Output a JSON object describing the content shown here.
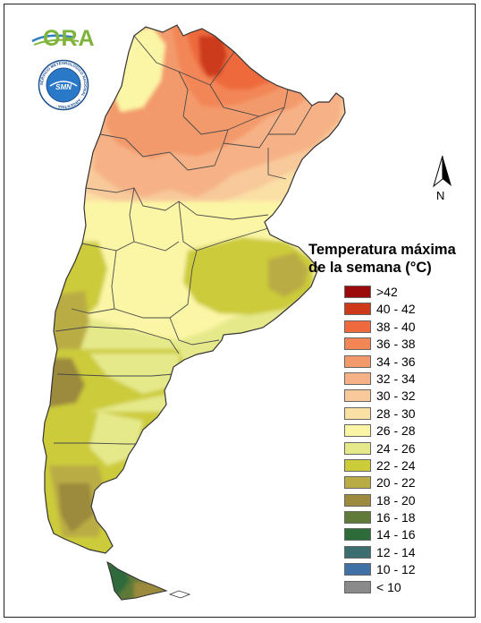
{
  "logos": {
    "ora": "ORA",
    "smn_ring_text": "SERVICIO METEOROLÓGICO NACIONAL · ARGENTINA ·",
    "smn_center": "SMN"
  },
  "north": {
    "label": "N",
    "icon": "north-arrow-icon"
  },
  "legend": {
    "title_line1": "Temperatura máxima",
    "title_line2": "de la semana (°C)",
    "items": [
      {
        "label": ">42",
        "color": "#9b0b0b"
      },
      {
        "label": "40 - 42",
        "color": "#cc3a1a"
      },
      {
        "label": "38 - 40",
        "color": "#ee6a3e"
      },
      {
        "label": "36 - 38",
        "color": "#f28656"
      },
      {
        "label": "34 - 36",
        "color": "#f39a6c"
      },
      {
        "label": "32 - 34",
        "color": "#f6b286"
      },
      {
        "label": "30 - 32",
        "color": "#f8c99a"
      },
      {
        "label": "28 - 30",
        "color": "#fbe0a6"
      },
      {
        "label": "26 - 28",
        "color": "#fbf5a6"
      },
      {
        "label": "24 - 26",
        "color": "#e5e98a"
      },
      {
        "label": "22 - 24",
        "color": "#cccb3a"
      },
      {
        "label": "20 - 22",
        "color": "#b9ac44"
      },
      {
        "label": "18 - 20",
        "color": "#9c8a3e"
      },
      {
        "label": "16 - 18",
        "color": "#5f7a39"
      },
      {
        "label": "14 - 16",
        "color": "#2e6b3a"
      },
      {
        "label": "12 - 14",
        "color": "#3c6e70"
      },
      {
        "label": "10 - 12",
        "color": "#3f70a6"
      },
      {
        "label": "< 10",
        "color": "#8a8a8a"
      }
    ]
  },
  "map_colors": {
    "c42": "#9b0b0b",
    "c40": "#cc3a1a",
    "c38": "#ee6a3e",
    "c36": "#f28656",
    "c34": "#f39a6c",
    "c32": "#f6b286",
    "c30": "#f8c99a",
    "c28": "#fbe0a6",
    "c26": "#fbf5a6",
    "c24": "#e5e98a",
    "c22": "#cccb3a",
    "c20": "#b9ac44",
    "c18": "#9c8a3e",
    "c16": "#5f7a39",
    "c14": "#2e6b3a"
  }
}
